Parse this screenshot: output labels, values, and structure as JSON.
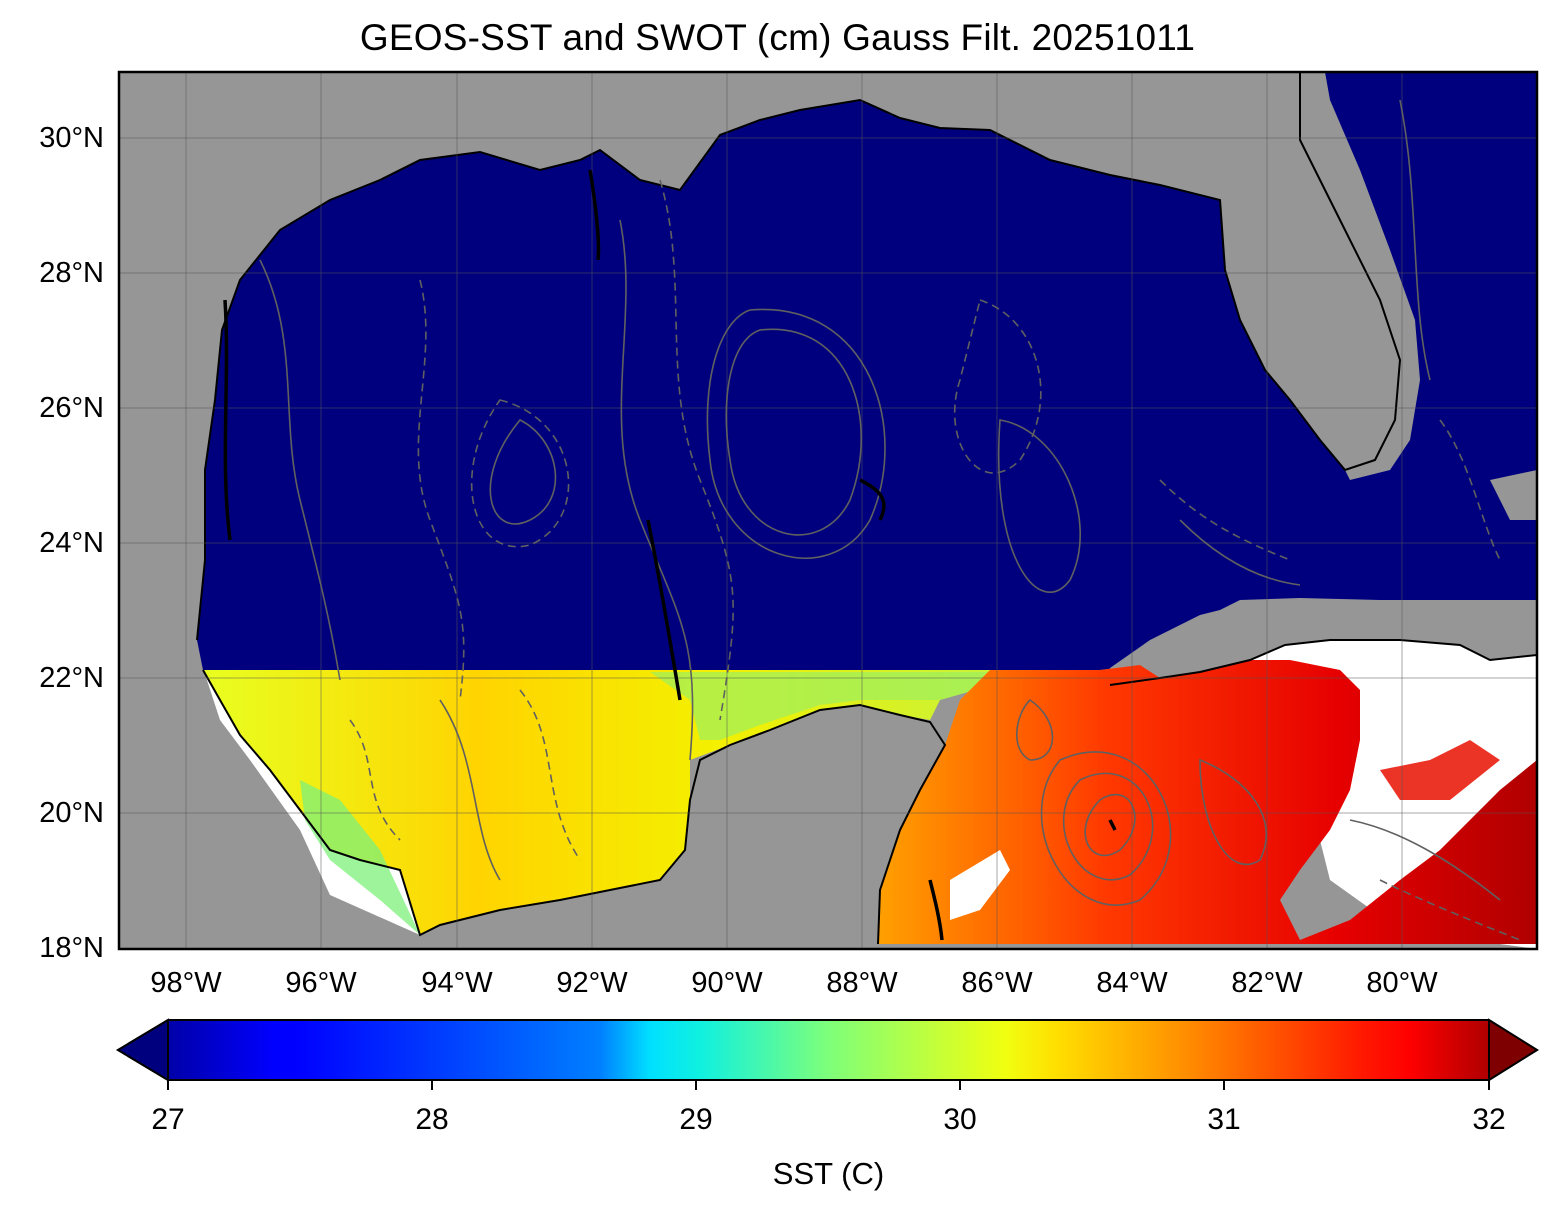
{
  "title": "GEOS-SST  and SWOT (cm) Gauss Filt. 20251011",
  "map": {
    "region": "Gulf of Mexico and Caribbean",
    "lon_range": [
      -99,
      -78
    ],
    "lat_range": [
      18,
      31
    ],
    "y_ticks": [
      "30°N",
      "28°N",
      "26°N",
      "24°N",
      "22°N",
      "20°N",
      "18°N"
    ],
    "x_ticks": [
      "98°W",
      "96°W",
      "94°W",
      "92°W",
      "90°W",
      "88°W",
      "86°W",
      "84°W",
      "82°W",
      "80°W"
    ],
    "land_color": "#969696",
    "no_data_color": "#ffffff",
    "masked_sst_color": "#00007f",
    "masked_region": "north of 22°N",
    "contour_color": "#555555",
    "contour_style": "solid positive, dashed negative SSH"
  },
  "colorbar": {
    "label": "SST (C)",
    "colormap": "jet",
    "vmin": 27,
    "vmax": 32,
    "ticks": [
      "27",
      "28",
      "29",
      "30",
      "31",
      "32"
    ],
    "extend": "both"
  }
}
